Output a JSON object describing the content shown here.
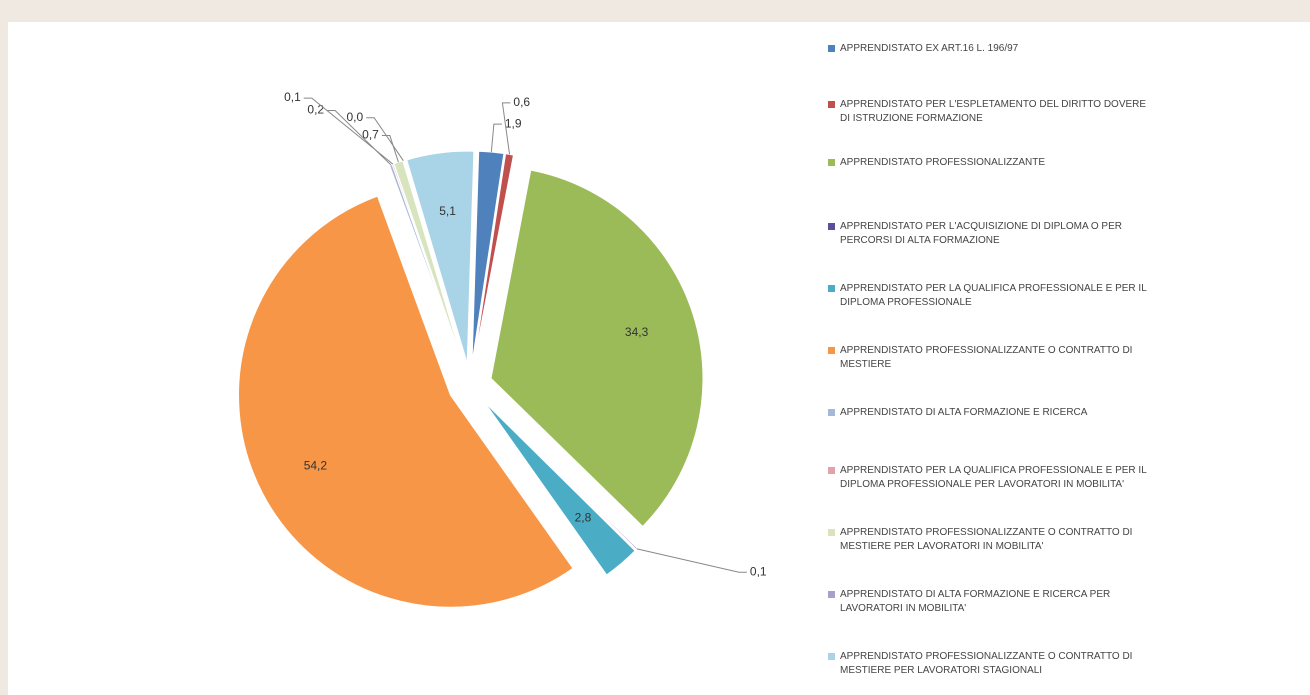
{
  "chart_data": {
    "type": "pie",
    "categories": [
      "APPRENDISTATO EX ART.16 L. 196/97",
      "APPRENDISTATO PER L'ESPLETAMENTO DEL DIRITTO DOVERE DI ISTRUZIONE FORMAZIONE",
      "APPRENDISTATO PROFESSIONALIZZANTE",
      "APPRENDISTATO PER L'ACQUISIZIONE DI DIPLOMA O PER PERCORSI DI ALTA FORMAZIONE",
      "APPRENDISTATO PER LA QUALIFICA PROFESSIONALE E PER IL DIPLOMA PROFESSIONALE",
      "APPRENDISTATO PROFESSIONALIZZANTE O CONTRATTO DI MESTIERE",
      "APPRENDISTATO DI ALTA FORMAZIONE E RICERCA",
      "APPRENDISTATO PER LA QUALIFICA PROFESSIONALE E PER IL DIPLOMA PROFESSIONALE PER LAVORATORI IN MOBILITA'",
      "APPRENDISTATO PROFESSIONALIZZANTE O CONTRATTO DI MESTIERE PER LAVORATORI IN MOBILITA'",
      "APPRENDISTATO DI ALTA FORMAZIONE E RICERCA PER LAVORATORI IN MOBILITA'",
      "APPRENDISTATO PROFESSIONALIZZANTE O CONTRATTO DI MESTIERE PER LAVORATORI STAGIONALI"
    ],
    "values": [
      1.9,
      0.6,
      34.3,
      0.1,
      2.8,
      54.2,
      0.2,
      0.1,
      0.7,
      0.0,
      5.1
    ],
    "value_labels": [
      "1,9",
      "0,6",
      "34,3",
      "0,1",
      "2,8",
      "54,2",
      "0,2",
      "0,1",
      "0,7",
      "0,0",
      "5,1"
    ],
    "colors": [
      "#4f81bd",
      "#c0504d",
      "#9bbb59",
      "#5b4f9a",
      "#4bacc6",
      "#f79646",
      "#a5b8d9",
      "#e6a0a8",
      "#d7e4bd",
      "#a7a0c8",
      "#a9d3e6"
    ]
  }
}
